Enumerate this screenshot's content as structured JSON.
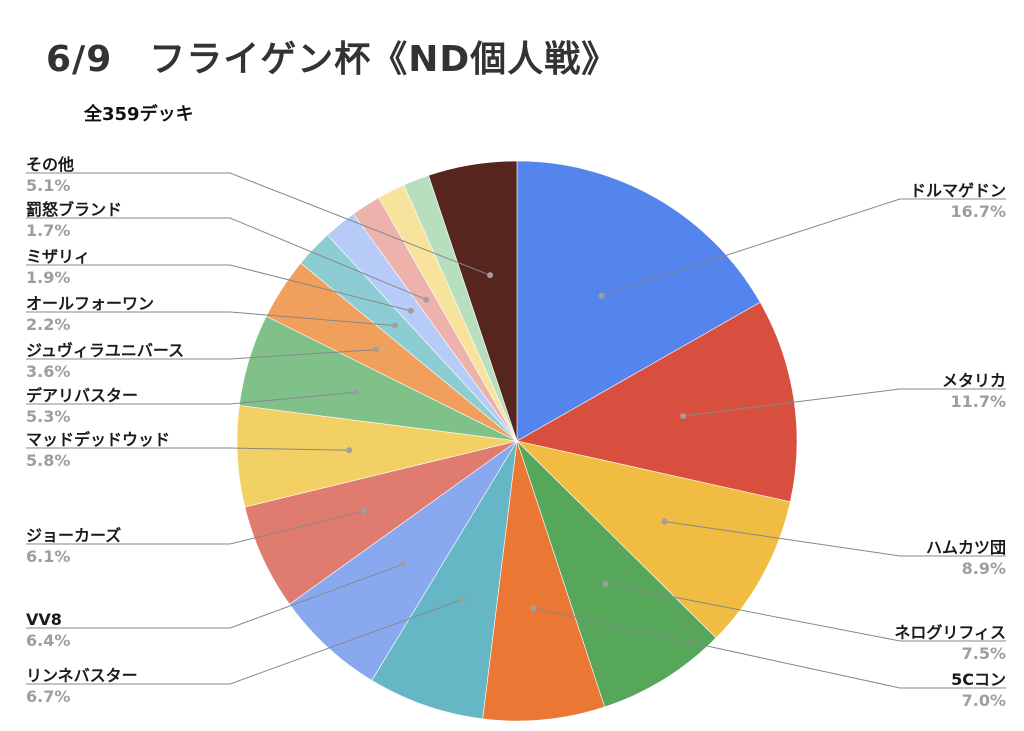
{
  "title": "6/9　フライゲン杯《ND個人戦》",
  "subtitle": "全359デッキ",
  "chart_data": {
    "type": "pie",
    "slices": [
      {
        "name": "ドルマゲドン",
        "label": "16.7%",
        "value": 16.7,
        "color": "#5385ec"
      },
      {
        "name": "メタリカ",
        "label": "11.7%",
        "value": 11.7,
        "color": "#d84f3f"
      },
      {
        "name": "ハムカツ団",
        "label": "8.9%",
        "value": 8.9,
        "color": "#f0bd42"
      },
      {
        "name": "ネログリフィス",
        "label": "7.5%",
        "value": 7.5,
        "color": "#57a75b"
      },
      {
        "name": "5Cコン",
        "label": "7.0%",
        "value": 7.0,
        "color": "#ea7733"
      },
      {
        "name": "リンネバスター",
        "label": "6.7%",
        "value": 6.7,
        "color": "#66b7c5"
      },
      {
        "name": "VV8",
        "label": "6.4%",
        "value": 6.4,
        "color": "#88a8f0"
      },
      {
        "name": "ジョーカーズ",
        "label": "6.1%",
        "value": 6.1,
        "color": "#e07b70"
      },
      {
        "name": "マッドデッドウッド",
        "label": "5.8%",
        "value": 5.8,
        "color": "#f3d063"
      },
      {
        "name": "デアリバスター",
        "label": "5.3%",
        "value": 5.3,
        "color": "#80c089"
      },
      {
        "name": "ジュヴィラユニバース",
        "label": "3.6%",
        "value": 3.6,
        "color": "#f0a05c"
      },
      {
        "name": "オールフォーワン",
        "label": "2.2%",
        "value": 2.2,
        "color": "#8ccdd4"
      },
      {
        "name": "ミザリィ",
        "label": "1.9%",
        "value": 1.9,
        "color": "#b6cbf8"
      },
      {
        "name": "罰怒ブランド",
        "label": "1.7%",
        "value": 1.7,
        "color": "#ecb2ab"
      },
      {
        "name": "(unlabeled)",
        "label": "",
        "value": 1.6,
        "color": "#f8e39c"
      },
      {
        "name": "(unlabeled)",
        "label": "",
        "value": 1.5,
        "color": "#b8dec0"
      },
      {
        "name": "その他",
        "label": "5.1%",
        "value": 5.1,
        "color": "#56251e"
      }
    ],
    "legend": "none"
  }
}
